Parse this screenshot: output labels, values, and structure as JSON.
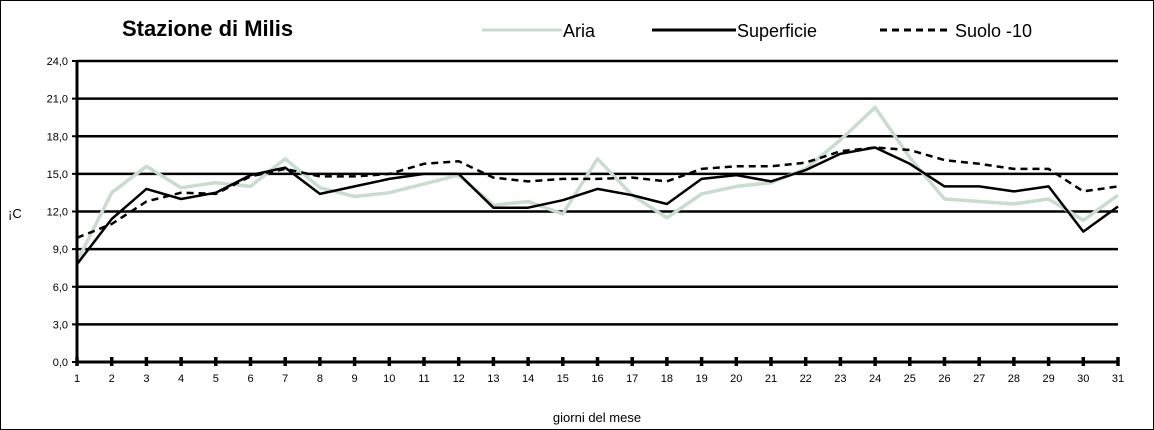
{
  "chart_data": {
    "type": "line",
    "title": "Stazione di Milis",
    "xlabel": "giorni del mese",
    "ylabel": "¡C",
    "categories": [
      "1",
      "2",
      "3",
      "4",
      "5",
      "6",
      "7",
      "8",
      "9",
      "10",
      "11",
      "12",
      "13",
      "14",
      "15",
      "16",
      "17",
      "18",
      "19",
      "20",
      "21",
      "22",
      "23",
      "24",
      "25",
      "26",
      "27",
      "28",
      "29",
      "30",
      "31"
    ],
    "y_ticks": [
      "0,0",
      "3,0",
      "6,0",
      "9,0",
      "12,0",
      "15,0",
      "18,0",
      "21,0",
      "24,0"
    ],
    "ylim": [
      0,
      24
    ],
    "grid": true,
    "legend_position": "top",
    "series": [
      {
        "name": "Aria",
        "color": "#c8dccf",
        "style": "solid",
        "values": [
          8.0,
          13.5,
          15.6,
          13.9,
          14.3,
          14.0,
          16.2,
          13.9,
          13.2,
          13.5,
          14.2,
          14.9,
          12.5,
          12.8,
          11.8,
          16.2,
          13.3,
          11.5,
          13.4,
          14.0,
          14.3,
          15.4,
          17.7,
          20.3,
          16.3,
          13.0,
          12.8,
          12.6,
          13.0,
          11.3,
          13.3
        ]
      },
      {
        "name": "Superficie",
        "color": "#000000",
        "style": "solid",
        "values": [
          7.8,
          11.4,
          13.8,
          13.0,
          13.5,
          14.9,
          15.5,
          13.4,
          14.0,
          14.6,
          15.0,
          15.0,
          12.3,
          12.3,
          12.9,
          13.8,
          13.3,
          12.6,
          14.6,
          14.9,
          14.4,
          15.3,
          16.6,
          17.1,
          15.8,
          14.0,
          14.0,
          13.6,
          14.0,
          10.4,
          12.4
        ]
      },
      {
        "name": "Suolo -10",
        "color": "#000000",
        "style": "dashed",
        "values": [
          9.9,
          11.0,
          12.8,
          13.5,
          13.4,
          14.8,
          15.4,
          14.8,
          14.8,
          15.0,
          15.8,
          16.0,
          14.7,
          14.4,
          14.6,
          14.6,
          14.7,
          14.4,
          15.4,
          15.6,
          15.6,
          15.9,
          16.8,
          17.1,
          16.9,
          16.1,
          15.8,
          15.4,
          15.4,
          13.6,
          14.0
        ]
      }
    ]
  }
}
